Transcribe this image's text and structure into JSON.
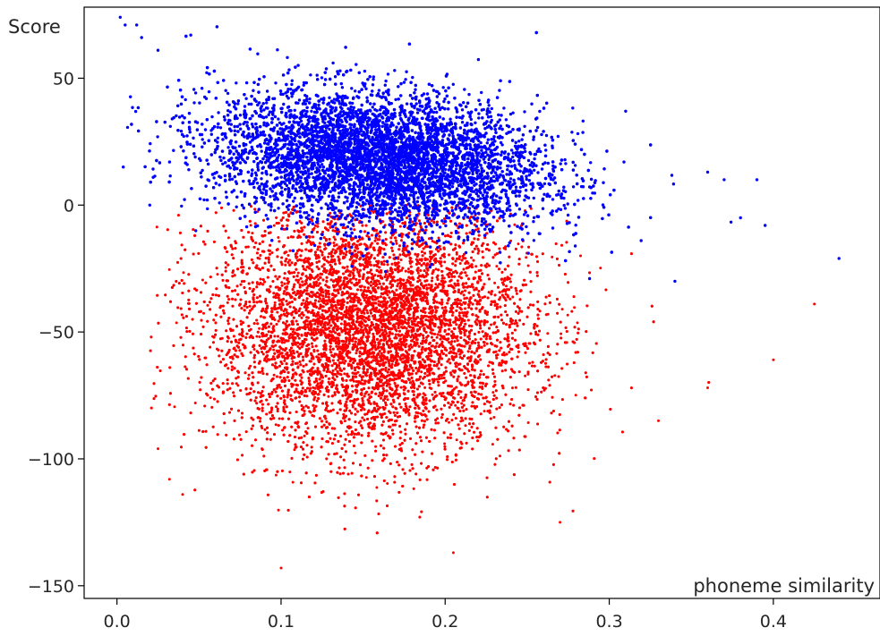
{
  "chart_data": {
    "type": "scatter",
    "xlabel": "phoneme similarity",
    "ylabel": "Score",
    "xlim": [
      -0.02,
      0.465
    ],
    "ylim": [
      -155,
      78
    ],
    "x_ticks": [
      0.0,
      0.1,
      0.2,
      0.3,
      0.4
    ],
    "x_tick_labels": [
      "0.0",
      "0.1",
      "0.2",
      "0.3",
      "0.4"
    ],
    "y_ticks": [
      50,
      0,
      -50,
      -100,
      -150
    ],
    "y_tick_labels": [
      "50",
      "0",
      "−50",
      "−100",
      "−150"
    ],
    "grid": false,
    "legend": "none",
    "series": [
      {
        "color": "#ff0000",
        "point_count": 12000,
        "center": [
          0.155,
          -48
        ],
        "spread": [
          0.048,
          24
        ],
        "x_range": [
          0.02,
          0.425
        ],
        "y_range": [
          -145,
          0
        ],
        "outliers": [
          [
            0.025,
            -96
          ],
          [
            0.04,
            -114
          ],
          [
            0.032,
            -108
          ],
          [
            0.425,
            -39
          ],
          [
            0.4,
            -61
          ],
          [
            0.36,
            -72
          ],
          [
            0.33,
            -85
          ],
          [
            0.1,
            -143
          ],
          [
            0.27,
            -125
          ],
          [
            0.205,
            -137
          ]
        ]
      },
      {
        "color": "#0000ff",
        "point_count": 8000,
        "center": [
          0.16,
          18
        ],
        "spread": [
          0.05,
          13
        ],
        "x_range": [
          0.0,
          0.445
        ],
        "y_range": [
          -35,
          74
        ],
        "outliers": [
          [
            0.002,
            74
          ],
          [
            0.005,
            71
          ],
          [
            0.012,
            71
          ],
          [
            0.015,
            66
          ],
          [
            0.025,
            61
          ],
          [
            0.045,
            67
          ],
          [
            0.02,
            0
          ],
          [
            0.44,
            -21
          ],
          [
            0.39,
            10
          ],
          [
            0.395,
            -8
          ],
          [
            0.38,
            -5
          ],
          [
            0.36,
            13
          ],
          [
            0.37,
            10
          ],
          [
            0.34,
            -30
          ],
          [
            0.31,
            37
          ]
        ]
      }
    ]
  }
}
